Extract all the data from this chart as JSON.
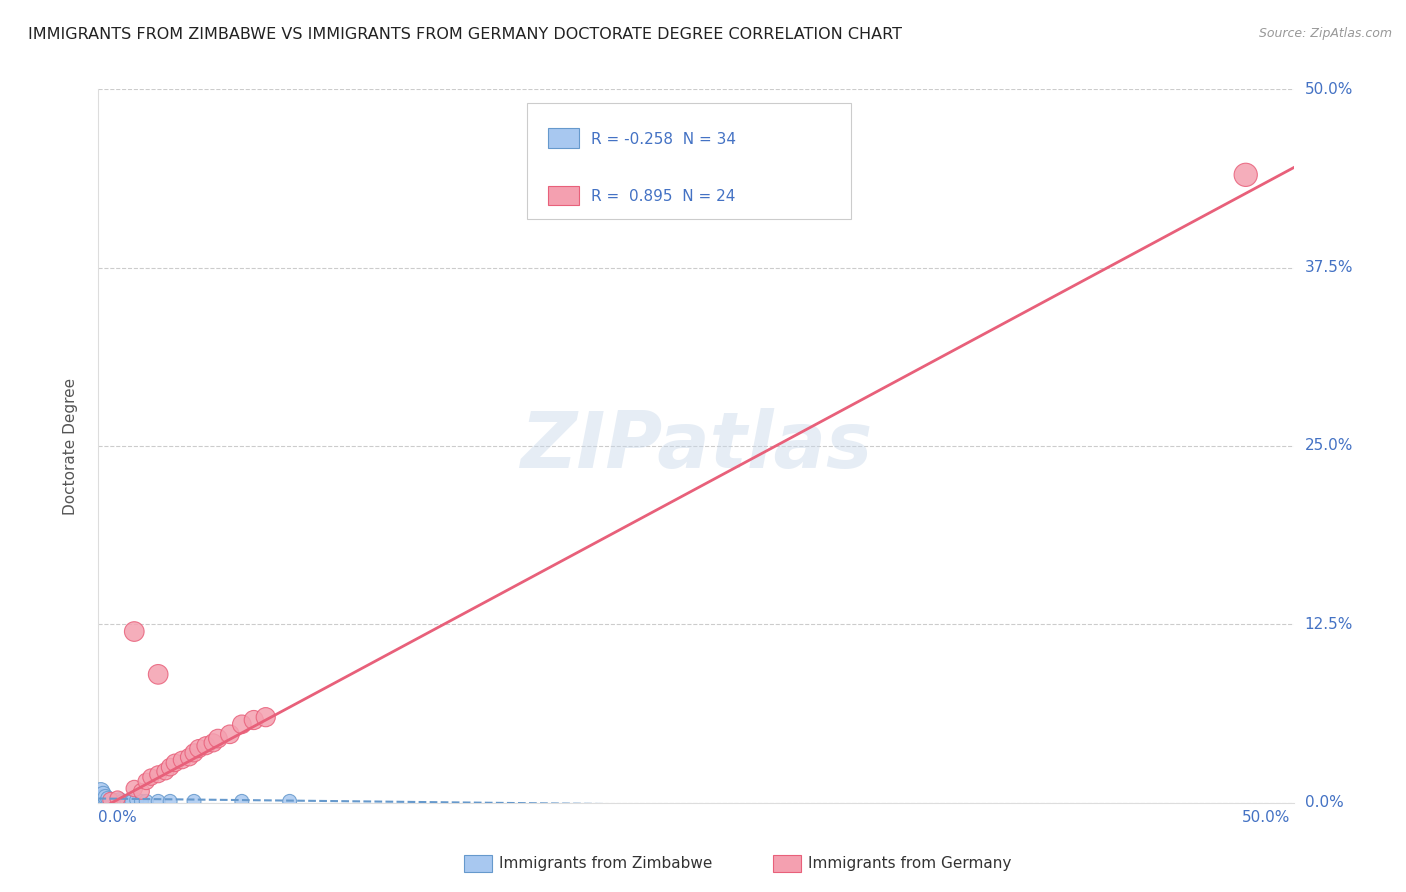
{
  "title": "IMMIGRANTS FROM ZIMBABWE VS IMMIGRANTS FROM GERMANY DOCTORATE DEGREE CORRELATION CHART",
  "source": "Source: ZipAtlas.com",
  "ylabel": "Doctorate Degree",
  "yticklabels": [
    "0.0%",
    "12.5%",
    "25.0%",
    "37.5%",
    "50.0%"
  ],
  "ytick_vals": [
    0.0,
    0.125,
    0.25,
    0.375,
    0.5
  ],
  "xlim": [
    0.0,
    0.5
  ],
  "ylim": [
    0.0,
    0.5
  ],
  "legend_r_zimbabwe": "-0.258",
  "legend_n_zimbabwe": "34",
  "legend_r_germany": "0.895",
  "legend_n_germany": "24",
  "color_zimbabwe": "#a8c8f0",
  "color_germany": "#f4a0b0",
  "color_trendline_zimbabwe": "#6699cc",
  "color_trendline_germany": "#e8607a",
  "watermark": "ZIPatlas",
  "background_color": "#ffffff",
  "title_color": "#222222",
  "axis_label_color": "#4472c4",
  "zimbabwe_points": [
    [
      0.001,
      0.001
    ],
    [
      0.001,
      0.002
    ],
    [
      0.002,
      0.001
    ],
    [
      0.002,
      0.002
    ],
    [
      0.002,
      0.003
    ],
    [
      0.003,
      0.001
    ],
    [
      0.003,
      0.002
    ],
    [
      0.003,
      0.003
    ],
    [
      0.004,
      0.001
    ],
    [
      0.004,
      0.002
    ],
    [
      0.005,
      0.001
    ],
    [
      0.005,
      0.002
    ],
    [
      0.006,
      0.001
    ],
    [
      0.006,
      0.002
    ],
    [
      0.007,
      0.001
    ],
    [
      0.008,
      0.001
    ],
    [
      0.009,
      0.002
    ],
    [
      0.01,
      0.001
    ],
    [
      0.012,
      0.001
    ],
    [
      0.014,
      0.001
    ],
    [
      0.016,
      0.002
    ],
    [
      0.018,
      0.001
    ],
    [
      0.02,
      0.001
    ],
    [
      0.025,
      0.001
    ],
    [
      0.03,
      0.001
    ],
    [
      0.04,
      0.001
    ],
    [
      0.06,
      0.001
    ],
    [
      0.08,
      0.001
    ],
    [
      0.001,
      0.005
    ],
    [
      0.001,
      0.008
    ],
    [
      0.002,
      0.004
    ],
    [
      0.002,
      0.006
    ],
    [
      0.003,
      0.004
    ],
    [
      0.004,
      0.003
    ]
  ],
  "germany_points": [
    [
      0.005,
      0.002
    ],
    [
      0.008,
      0.003
    ],
    [
      0.015,
      0.01
    ],
    [
      0.018,
      0.008
    ],
    [
      0.02,
      0.015
    ],
    [
      0.022,
      0.018
    ],
    [
      0.025,
      0.02
    ],
    [
      0.028,
      0.022
    ],
    [
      0.03,
      0.025
    ],
    [
      0.032,
      0.028
    ],
    [
      0.035,
      0.03
    ],
    [
      0.038,
      0.032
    ],
    [
      0.04,
      0.035
    ],
    [
      0.042,
      0.038
    ],
    [
      0.045,
      0.04
    ],
    [
      0.048,
      0.042
    ],
    [
      0.05,
      0.045
    ],
    [
      0.055,
      0.048
    ],
    [
      0.06,
      0.055
    ],
    [
      0.065,
      0.058
    ],
    [
      0.07,
      0.06
    ],
    [
      0.015,
      0.12
    ],
    [
      0.025,
      0.09
    ],
    [
      0.48,
      0.44
    ]
  ],
  "zimbabwe_sizes": [
    120,
    100,
    110,
    130,
    100,
    110,
    120,
    100,
    110,
    100,
    110,
    100,
    110,
    100,
    110,
    100,
    110,
    100,
    100,
    100,
    100,
    100,
    100,
    100,
    100,
    100,
    100,
    100,
    140,
    160,
    120,
    130,
    120,
    110
  ],
  "germany_sizes": [
    120,
    120,
    140,
    130,
    140,
    140,
    150,
    150,
    160,
    160,
    160,
    160,
    170,
    170,
    170,
    170,
    180,
    180,
    180,
    190,
    190,
    200,
    200,
    280
  ]
}
